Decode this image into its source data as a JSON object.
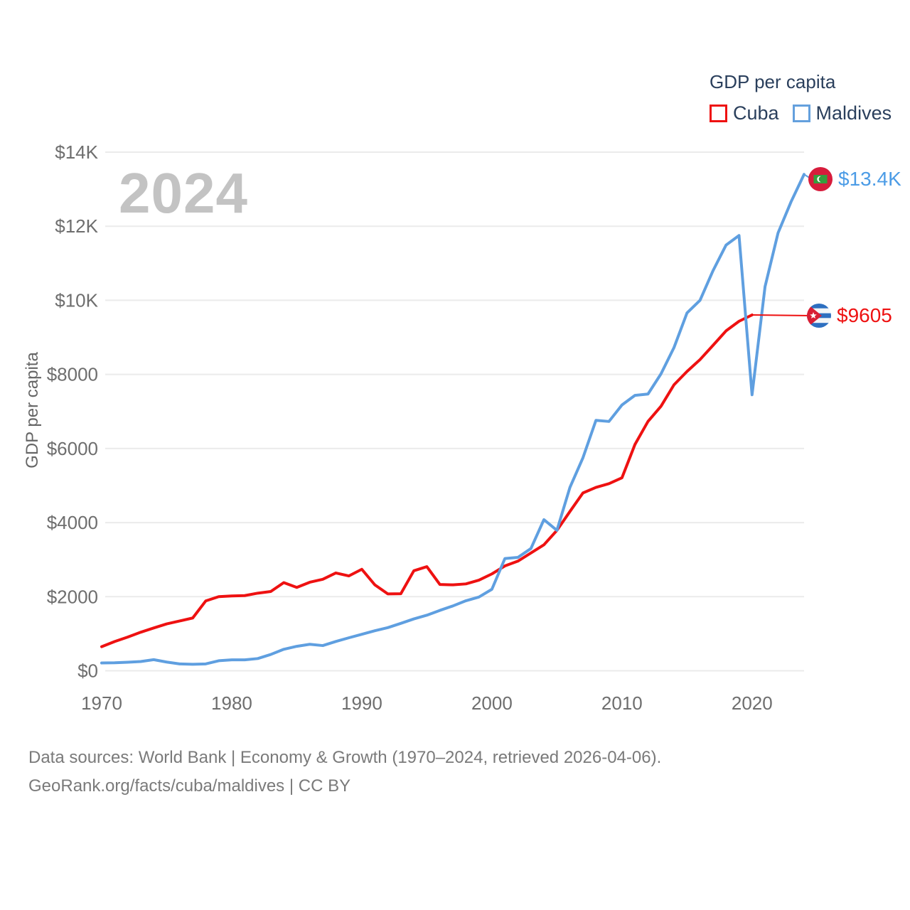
{
  "watermark": "2024",
  "legend": {
    "title": "GDP per capita",
    "items": [
      {
        "label": "Cuba",
        "color": "#ee1111"
      },
      {
        "label": "Maldives",
        "color": "#64a0dd"
      }
    ]
  },
  "y_axis": {
    "title": "GDP per capita"
  },
  "end_labels": [
    {
      "series": "Maldives",
      "text": "$13.4K",
      "color": "#4c9ce6",
      "flag": "maldives-flag"
    },
    {
      "series": "Cuba",
      "text": "$9605",
      "color": "#ee1111",
      "flag": "cuba-flag"
    }
  ],
  "footer": {
    "line1": "Data sources: World Bank | Economy & Growth (1970–2024, retrieved 2026-04-06).",
    "line2": "GeoRank.org/facts/cuba/maldives | CC BY"
  },
  "chart_data": {
    "type": "line",
    "title": "GDP per capita",
    "xlabel": "",
    "ylabel": "GDP per capita",
    "xlim": [
      1970,
      2024
    ],
    "ylim": [
      0,
      14000
    ],
    "grid": true,
    "legend_position": "top-right",
    "xticks": [
      1970,
      1980,
      1990,
      2000,
      2010,
      2020
    ],
    "yticks": [
      {
        "value": 0,
        "label": "$0"
      },
      {
        "value": 2000,
        "label": "$2000"
      },
      {
        "value": 4000,
        "label": "$4000"
      },
      {
        "value": 6000,
        "label": "$6000"
      },
      {
        "value": 8000,
        "label": "$8000"
      },
      {
        "value": 10000,
        "label": "$10K"
      },
      {
        "value": 12000,
        "label": "$12K"
      },
      {
        "value": 14000,
        "label": "$14K"
      }
    ],
    "x": [
      1970,
      1971,
      1972,
      1973,
      1974,
      1975,
      1976,
      1977,
      1978,
      1979,
      1980,
      1981,
      1982,
      1983,
      1984,
      1985,
      1986,
      1987,
      1988,
      1989,
      1990,
      1991,
      1992,
      1993,
      1994,
      1995,
      1996,
      1997,
      1998,
      1999,
      2000,
      2001,
      2002,
      2003,
      2004,
      2005,
      2006,
      2007,
      2008,
      2009,
      2010,
      2011,
      2012,
      2013,
      2014,
      2015,
      2016,
      2017,
      2018,
      2019,
      2020,
      2021,
      2022,
      2023,
      2024
    ],
    "series": [
      {
        "name": "Cuba",
        "color": "#ee1111",
        "values": [
          650,
          790,
          910,
          1040,
          1155,
          1265,
          1345,
          1425,
          1885,
          2000,
          2020,
          2030,
          2095,
          2140,
          2380,
          2250,
          2390,
          2470,
          2640,
          2560,
          2740,
          2320,
          2075,
          2080,
          2700,
          2810,
          2330,
          2320,
          2345,
          2445,
          2615,
          2830,
          2960,
          3180,
          3400,
          3790,
          4300,
          4800,
          4950,
          5050,
          5210,
          6110,
          6730,
          7140,
          7720,
          8080,
          8400,
          8785,
          9175,
          9435,
          9605,
          null,
          null,
          null,
          null
        ]
      },
      {
        "name": "Maldives",
        "color": "#5f9fe0",
        "values": [
          210,
          215,
          230,
          250,
          300,
          235,
          185,
          175,
          185,
          270,
          295,
          295,
          330,
          440,
          580,
          660,
          715,
          680,
          790,
          890,
          985,
          1080,
          1165,
          1280,
          1400,
          1500,
          1630,
          1750,
          1890,
          1990,
          2200,
          3030,
          3060,
          3300,
          4080,
          3790,
          4950,
          5750,
          6760,
          6730,
          7175,
          7435,
          7470,
          8015,
          8725,
          9660,
          10000,
          10800,
          11490,
          11750,
          7450,
          10370,
          11820,
          12660,
          13400
        ]
      }
    ],
    "annotations": [
      {
        "series": "Maldives",
        "year": 2024,
        "value": 13400,
        "label": "$13.4K"
      },
      {
        "series": "Cuba",
        "year": 2020,
        "value": 9605,
        "label": "$9605"
      }
    ]
  }
}
